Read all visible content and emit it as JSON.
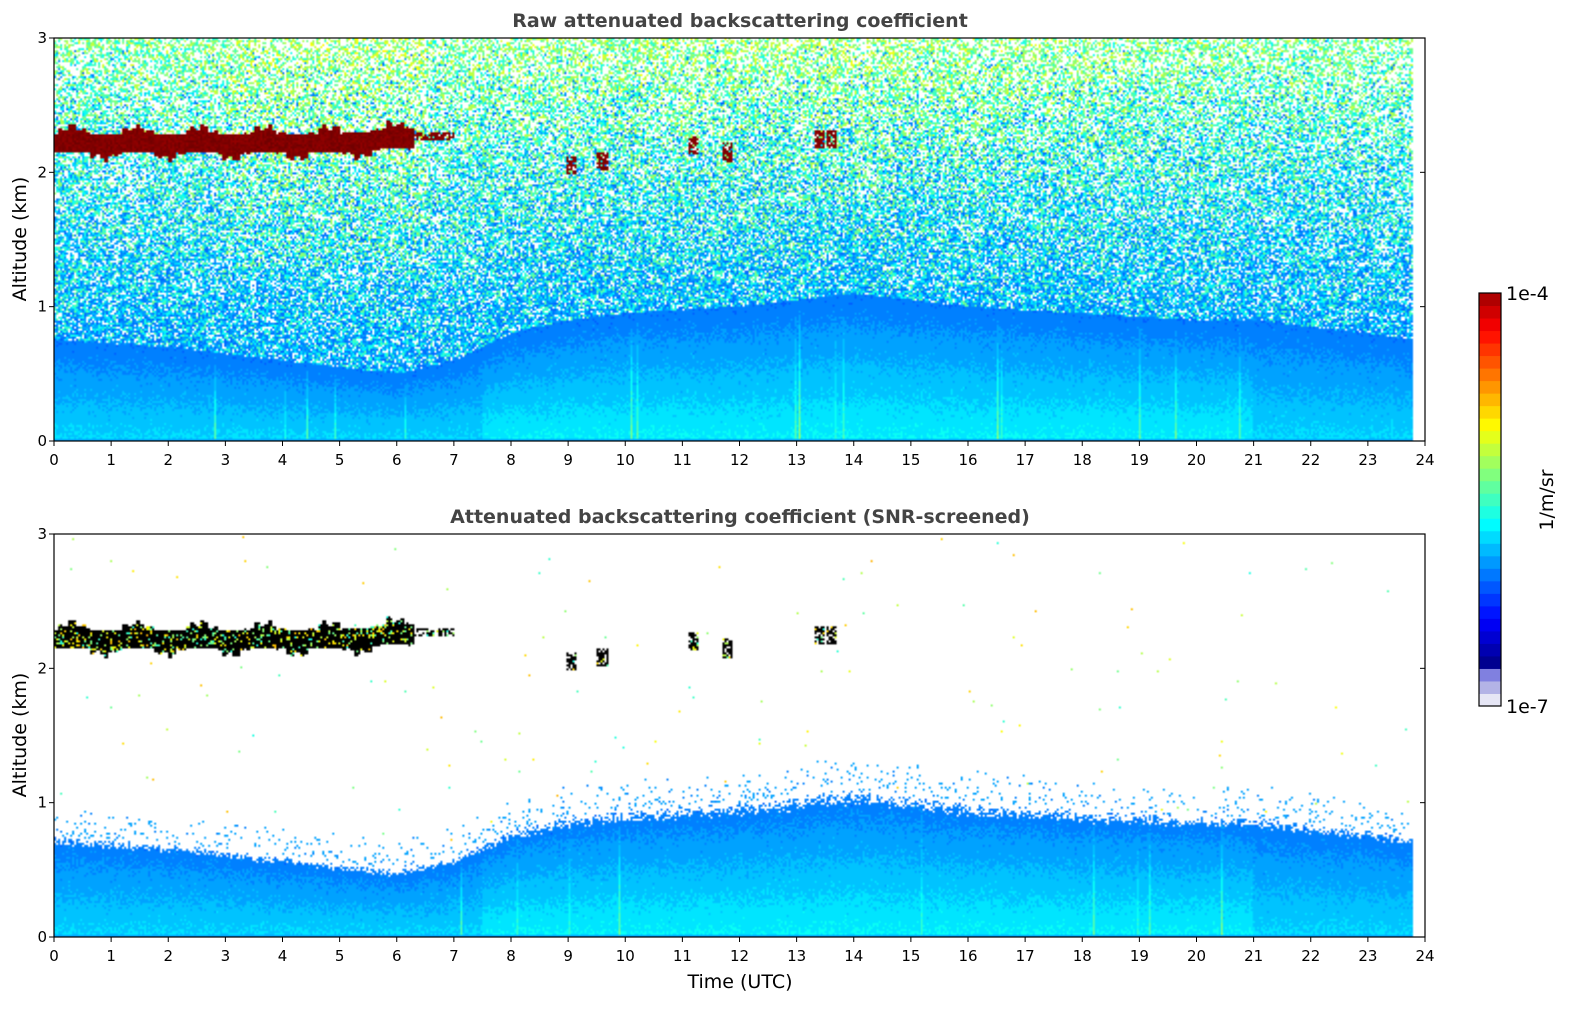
{
  "chart_data": [
    {
      "type": "heatmap",
      "title": "Raw attenuated backscattering coefficient",
      "xlabel": "",
      "ylabel": "Altitude (km)",
      "xlim": [
        0,
        24
      ],
      "ylim": [
        0,
        3
      ],
      "xticks": [
        "0",
        "1",
        "2",
        "3",
        "4",
        "5",
        "6",
        "7",
        "8",
        "9",
        "10",
        "11",
        "12",
        "13",
        "14",
        "15",
        "16",
        "17",
        "18",
        "19",
        "20",
        "21",
        "22",
        "23",
        "24"
      ],
      "yticks": [
        "0",
        "1",
        "2",
        "3"
      ],
      "data_end_time": 23.8,
      "features": {
        "cloud_layer": {
          "time_range": [
            0,
            7.0
          ],
          "altitude_km": [
            2.1,
            2.35
          ],
          "value": "1e-4"
        },
        "cloud_patches": [
          {
            "time": 9.05,
            "altitude_km": 2.05
          },
          {
            "time": 9.6,
            "altitude_km": 2.08
          },
          {
            "time": 11.2,
            "altitude_km": 2.2
          },
          {
            "time": 11.8,
            "altitude_km": 2.15
          },
          {
            "time": 13.4,
            "altitude_km": 2.25
          },
          {
            "time": 13.6,
            "altitude_km": 2.25
          }
        ],
        "boundary_layer_top_km": {
          "times": [
            0,
            2,
            4,
            5,
            6,
            7,
            8,
            9,
            10,
            12,
            14,
            16,
            18,
            20,
            21,
            22,
            23,
            23.8
          ],
          "heights": [
            0.75,
            0.7,
            0.6,
            0.55,
            0.5,
            0.6,
            0.8,
            0.9,
            0.95,
            1.0,
            1.1,
            1.0,
            0.95,
            0.9,
            0.9,
            0.85,
            0.8,
            0.75
          ]
        }
      },
      "show_in_noise": true
    },
    {
      "type": "heatmap",
      "title": "Attenuated backscattering coefficient (SNR-screened)",
      "xlabel": "Time (UTC)",
      "ylabel": "Altitude (km)",
      "xlim": [
        0,
        24
      ],
      "ylim": [
        0,
        3
      ],
      "xticks": [
        "0",
        "1",
        "2",
        "3",
        "4",
        "5",
        "6",
        "7",
        "8",
        "9",
        "10",
        "11",
        "12",
        "13",
        "14",
        "15",
        "16",
        "17",
        "18",
        "19",
        "20",
        "21",
        "22",
        "23",
        "24"
      ],
      "yticks": [
        "0",
        "1",
        "2",
        "3"
      ],
      "data_end_time": 23.8,
      "show_in_noise": false
    }
  ],
  "colorbar": {
    "label": "1/m/sr",
    "max_label": "1e-4",
    "min_label": "1e-7",
    "colormap": "jet",
    "low_colors": [
      "#e6e6f5",
      "#b3b3e6",
      "#8080e0"
    ]
  }
}
